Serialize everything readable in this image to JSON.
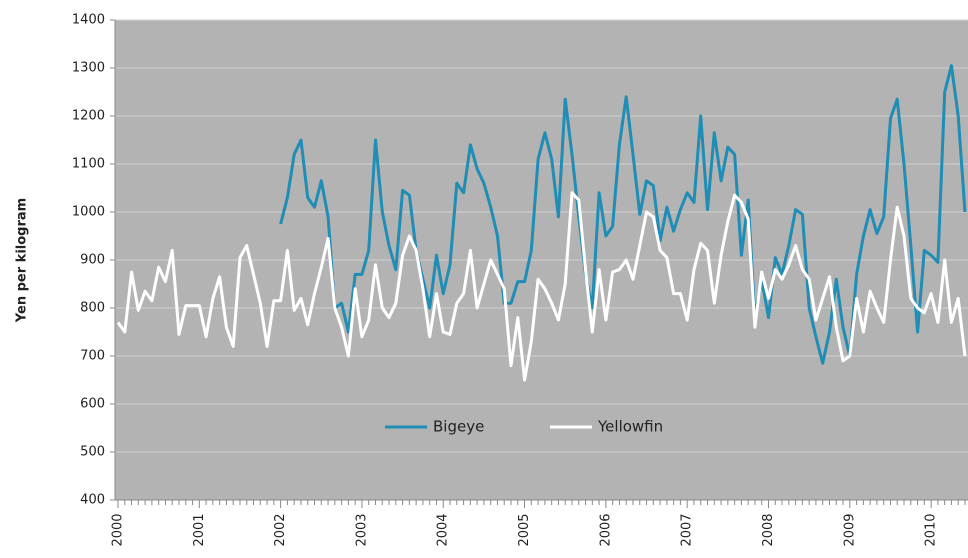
{
  "chart_data": {
    "type": "line",
    "y_label": "Yen per kilogram",
    "categories": [
      "2000",
      null,
      null,
      null,
      null,
      null,
      null,
      null,
      null,
      null,
      null,
      null,
      "2001",
      null,
      null,
      null,
      null,
      null,
      null,
      null,
      null,
      null,
      null,
      null,
      "2002",
      null,
      null,
      null,
      null,
      null,
      null,
      null,
      null,
      null,
      null,
      null,
      "2003",
      null,
      null,
      null,
      null,
      null,
      null,
      null,
      null,
      null,
      null,
      null,
      "2004",
      null,
      null,
      null,
      null,
      null,
      null,
      null,
      null,
      null,
      null,
      null,
      "2005",
      null,
      null,
      null,
      null,
      null,
      null,
      null,
      null,
      null,
      null,
      null,
      "2006",
      null,
      null,
      null,
      null,
      null,
      null,
      null,
      null,
      null,
      null,
      null,
      "2007",
      null,
      null,
      null,
      null,
      null,
      null,
      null,
      null,
      null,
      null,
      null,
      "2008",
      null,
      null,
      null,
      null,
      null,
      null,
      null,
      null,
      null,
      null,
      null,
      "2009",
      null,
      null,
      null,
      null,
      null,
      null,
      null,
      null,
      null,
      null,
      null,
      "2010",
      null,
      null,
      null,
      null,
      null
    ],
    "series": [
      {
        "name": "Bigeye",
        "color": "#1f8db5",
        "values": [
          null,
          null,
          null,
          null,
          null,
          null,
          null,
          null,
          null,
          null,
          null,
          null,
          null,
          null,
          null,
          null,
          null,
          null,
          null,
          null,
          null,
          null,
          null,
          null,
          975,
          1030,
          1120,
          1150,
          1030,
          1010,
          1065,
          990,
          800,
          810,
          750,
          870,
          870,
          920,
          1150,
          1000,
          930,
          880,
          1045,
          1035,
          920,
          860,
          800,
          910,
          830,
          890,
          1060,
          1040,
          1140,
          1090,
          1060,
          1010,
          950,
          810,
          810,
          855,
          855,
          920,
          1110,
          1165,
          1110,
          990,
          1235,
          1120,
          990,
          870,
          800,
          1040,
          950,
          970,
          1140,
          1240,
          1120,
          995,
          1065,
          1055,
          940,
          1010,
          960,
          1005,
          1040,
          1020,
          1200,
          1005,
          1165,
          1065,
          1135,
          1120,
          910,
          1025,
          780,
          860,
          780,
          905,
          870,
          930,
          1005,
          995,
          800,
          740,
          685,
          750,
          860,
          760,
          700,
          870,
          950,
          1005,
          955,
          990,
          1195,
          1235,
          1100,
          930,
          750,
          920,
          910,
          895,
          1250,
          1305,
          1200,
          1000
        ]
      },
      {
        "name": "Yellowfin",
        "color": "#ffffff",
        "values": [
          770,
          750,
          875,
          795,
          835,
          815,
          885,
          855,
          920,
          745,
          805,
          805,
          805,
          740,
          820,
          865,
          760,
          720,
          905,
          930,
          870,
          810,
          720,
          815,
          815,
          920,
          795,
          820,
          765,
          830,
          885,
          945,
          800,
          760,
          700,
          840,
          740,
          775,
          890,
          800,
          780,
          810,
          910,
          950,
          920,
          840,
          740,
          830,
          750,
          745,
          810,
          830,
          920,
          800,
          850,
          900,
          870,
          840,
          680,
          780,
          650,
          730,
          860,
          840,
          810,
          775,
          850,
          1040,
          1025,
          880,
          750,
          880,
          775,
          875,
          880,
          900,
          860,
          930,
          1000,
          990,
          920,
          905,
          830,
          830,
          775,
          880,
          935,
          920,
          810,
          910,
          980,
          1035,
          1020,
          985,
          760,
          875,
          820,
          880,
          860,
          890,
          930,
          880,
          860,
          775,
          820,
          865,
          760,
          690,
          700,
          820,
          750,
          835,
          800,
          770,
          900,
          1010,
          950,
          820,
          800,
          790,
          830,
          770,
          900,
          770,
          820,
          700
        ]
      }
    ],
    "ylim": [
      400,
      1400
    ],
    "yticks": [
      400,
      500,
      600,
      700,
      800,
      900,
      1000,
      1100,
      1200,
      1300,
      1400
    ],
    "grid": true,
    "plot_background": "#b3b3b3",
    "legend": "center"
  }
}
